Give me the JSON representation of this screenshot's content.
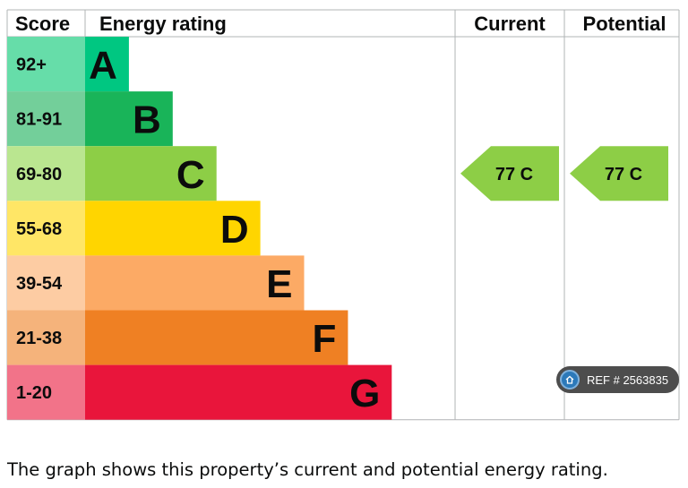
{
  "chart_data": {
    "type": "bar",
    "headers": {
      "score": "Score",
      "rating": "Energy rating",
      "current": "Current",
      "potential": "Potential"
    },
    "bands": [
      {
        "score": "92+",
        "letter": "A",
        "color": "#00c781",
        "score_bg": "#66dda9"
      },
      {
        "score": "81-91",
        "letter": "B",
        "color": "#19b459",
        "score_bg": "#73cf9a"
      },
      {
        "score": "69-80",
        "letter": "C",
        "color": "#8dce46",
        "score_bg": "#bae690"
      },
      {
        "score": "55-68",
        "letter": "D",
        "color": "#ffd500",
        "score_bg": "#ffe666"
      },
      {
        "score": "39-54",
        "letter": "E",
        "color": "#fcaa65",
        "score_bg": "#fdcca3"
      },
      {
        "score": "21-38",
        "letter": "F",
        "color": "#ef8023",
        "score_bg": "#f5b37b"
      },
      {
        "score": "1-20",
        "letter": "G",
        "color": "#e9153b",
        "score_bg": "#f27389"
      }
    ],
    "current": {
      "value": 77,
      "band": "C",
      "label": "77 C"
    },
    "potential": {
      "value": 77,
      "band": "C",
      "label": "77 C"
    }
  },
  "caption": "The graph shows this property’s current and potential energy rating.",
  "ref_badge": {
    "text": "REF # 2563835",
    "icon": "home-icon"
  }
}
